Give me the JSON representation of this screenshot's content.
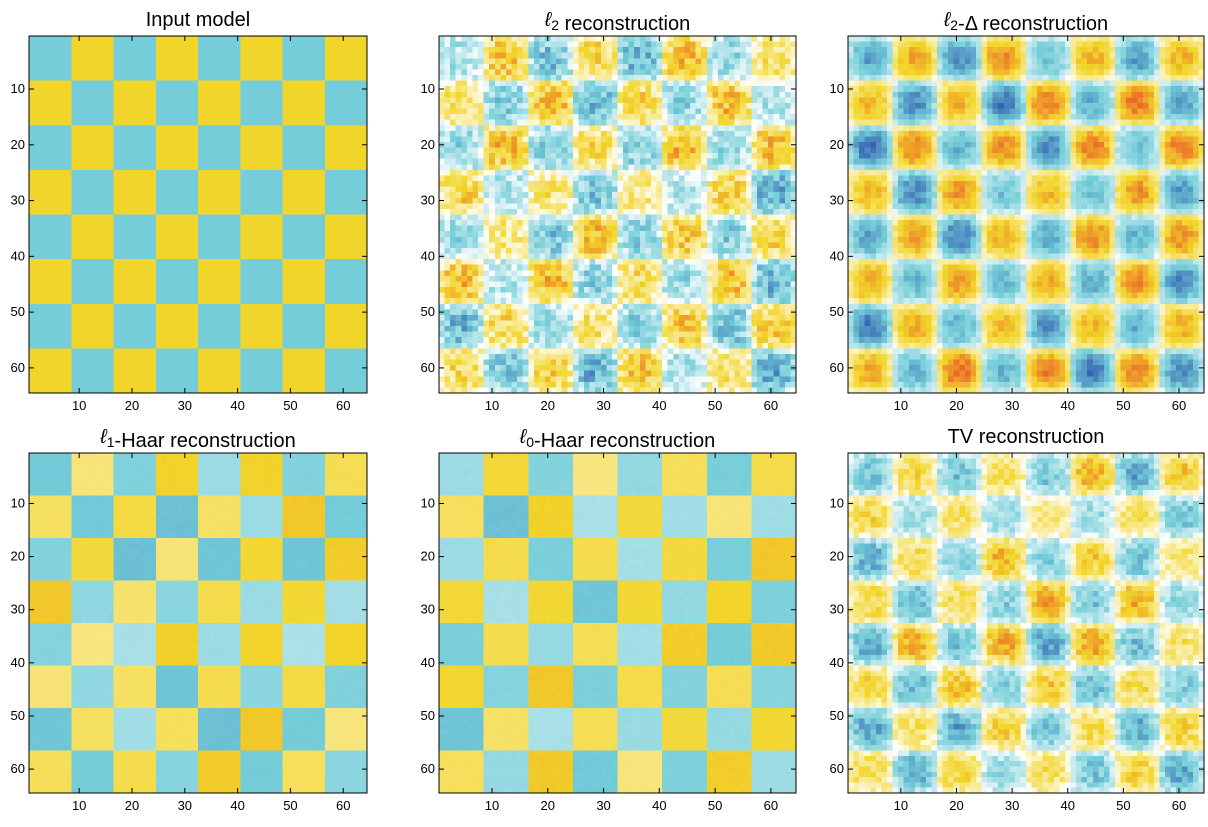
{
  "chart_data": [
    {
      "type": "heatmap",
      "id": "input",
      "title": "Input model",
      "grid_size": 64,
      "block_size": 8,
      "xticks": [
        10,
        20,
        30,
        40,
        50,
        60
      ],
      "yticks": [
        10,
        20,
        30,
        40,
        50,
        60
      ],
      "xlim": [
        0.5,
        64.5
      ],
      "ylim": [
        0.5,
        64.5
      ],
      "pattern": "checkerboard",
      "style": "clean",
      "noise": 0.0,
      "amplitude": 1.0
    },
    {
      "type": "heatmap",
      "id": "l2",
      "title_parts": [
        {
          "text": "ℓ",
          "italic": true
        },
        {
          "text": "2",
          "sub": true
        },
        {
          "text": " reconstruction"
        }
      ],
      "grid_size": 64,
      "block_size": 8,
      "xticks": [
        10,
        20,
        30,
        40,
        50,
        60
      ],
      "yticks": [
        10,
        20,
        30,
        40,
        50,
        60
      ],
      "pattern": "checkerboard",
      "style": "noisy",
      "noise": 0.55,
      "amplitude": 0.9
    },
    {
      "type": "heatmap",
      "id": "l2delta",
      "title_parts": [
        {
          "text": "ℓ",
          "italic": true
        },
        {
          "text": "2",
          "sub": true
        },
        {
          "text": "-Δ reconstruction"
        }
      ],
      "grid_size": 64,
      "block_size": 8,
      "xticks": [
        10,
        20,
        30,
        40,
        50,
        60
      ],
      "yticks": [
        10,
        20,
        30,
        40,
        50,
        60
      ],
      "pattern": "checkerboard",
      "style": "smooth",
      "noise": 0.25,
      "amplitude": 1.35
    },
    {
      "type": "heatmap",
      "id": "l1haar",
      "title_parts": [
        {
          "text": "ℓ",
          "italic": true
        },
        {
          "text": "1",
          "sub": true
        },
        {
          "text": "-Haar reconstruction"
        }
      ],
      "grid_size": 64,
      "block_size": 8,
      "xticks": [
        10,
        20,
        30,
        40,
        50,
        60
      ],
      "yticks": [
        10,
        20,
        30,
        40,
        50,
        60
      ],
      "pattern": "checkerboard",
      "style": "blocky",
      "noise": 0.08,
      "amplitude": 1.0
    },
    {
      "type": "heatmap",
      "id": "l0haar",
      "title_parts": [
        {
          "text": "ℓ",
          "italic": true
        },
        {
          "text": "0",
          "sub": true
        },
        {
          "text": "-Haar reconstruction"
        }
      ],
      "grid_size": 64,
      "block_size": 8,
      "xticks": [
        10,
        20,
        30,
        40,
        50,
        60
      ],
      "yticks": [
        10,
        20,
        30,
        40,
        50,
        60
      ],
      "pattern": "checkerboard",
      "style": "blocky",
      "noise": 0.12,
      "amplitude": 1.0
    },
    {
      "type": "heatmap",
      "id": "tv",
      "title": "TV reconstruction",
      "grid_size": 64,
      "block_size": 8,
      "xticks": [
        10,
        20,
        30,
        40,
        50,
        60
      ],
      "yticks": [
        10,
        20,
        30,
        40,
        50,
        60
      ],
      "pattern": "checkerboard",
      "style": "smooth",
      "noise": 0.4,
      "amplitude": 1.0
    }
  ],
  "colors": {
    "high": "#f2d52a",
    "low": "#74cdd8",
    "hot": "#e8402a",
    "cold": "#2748a8",
    "mid": "#ffffff"
  }
}
